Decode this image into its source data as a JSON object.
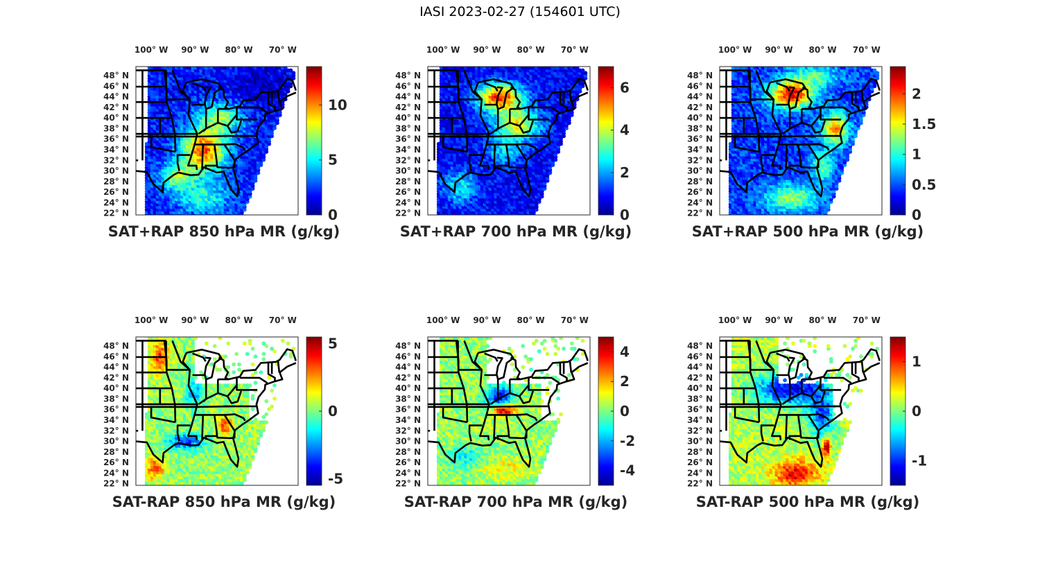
{
  "figure": {
    "title": "IASI 2023-02-27 (154601 UTC)"
  },
  "colors": {
    "jet": [
      "#00008f",
      "#0000ff",
      "#0080ff",
      "#00ffff",
      "#80ff80",
      "#ffff00",
      "#ff8000",
      "#ff0000",
      "#800000"
    ],
    "border": "#000000",
    "text": "#262626"
  },
  "chart_data": [
    {
      "type": "heatmap",
      "title": "SAT+RAP 850 hPa MR (g/kg)",
      "xlabel": "",
      "ylabel": "",
      "x_ticks": [
        "100° W",
        "90° W",
        "80° W",
        "70° W"
      ],
      "y_ticks": [
        "48° N",
        "46° N",
        "44° N",
        "42° N",
        "40° N",
        "38° N",
        "36° N",
        "34° N",
        "32° N",
        "30° N",
        "28° N",
        "26° N",
        "24° N",
        "22° N"
      ],
      "colorbar": {
        "range": [
          0,
          13.5
        ],
        "ticks": [
          0,
          5,
          10
        ],
        "tick_labels": [
          "0",
          "5",
          "10"
        ]
      },
      "pattern": "moisture-high-southeast",
      "description": "Mostly low values (~1-3) across north and west; moist tongue 8-12 g/kg over lower Mississippi valley, Tennessee, Alabama; moderate 5-7 over Gulf"
    },
    {
      "type": "heatmap",
      "title": "SAT+RAP 700 hPa MR (g/kg)",
      "xlabel": "",
      "ylabel": "",
      "x_ticks": [
        "100° W",
        "90° W",
        "80° W",
        "70° W"
      ],
      "y_ticks": [
        "48° N",
        "46° N",
        "44° N",
        "42° N",
        "40° N",
        "38° N",
        "36° N",
        "34° N",
        "32° N",
        "30° N",
        "28° N",
        "26° N",
        "24° N",
        "22° N"
      ],
      "colorbar": {
        "range": [
          0,
          7
        ],
        "ticks": [
          0,
          2,
          4,
          6
        ],
        "tick_labels": [
          "0",
          "2",
          "4",
          "6"
        ]
      },
      "pattern": "moisture-high-great-lakes",
      "description": "Max 5-6.5 g/kg over Wisconsin/Michigan/Ohio valley; low values 0-2 in west and over ocean"
    },
    {
      "type": "heatmap",
      "title": "SAT+RAP 500 hPa MR (g/kg)",
      "xlabel": "",
      "ylabel": "",
      "x_ticks": [
        "100° W",
        "90° W",
        "80° W",
        "70° W"
      ],
      "y_ticks": [
        "48° N",
        "46° N",
        "44° N",
        "42° N",
        "40° N",
        "38° N",
        "36° N",
        "34° N",
        "32° N",
        "30° N",
        "28° N",
        "26° N",
        "24° N",
        "22° N"
      ],
      "colorbar": {
        "range": [
          0,
          2.45
        ],
        "ticks": [
          0,
          0.5,
          1,
          1.5,
          2
        ],
        "tick_labels": [
          "0",
          "0.5",
          "1",
          "1.5",
          "2"
        ]
      },
      "pattern": "moisture-high-michigan",
      "description": "Max ~2 g/kg over Michigan and Mid-Atlantic coast; low values in central plains"
    },
    {
      "type": "heatmap",
      "title": "SAT-RAP 850 hPa MR (g/kg)",
      "xlabel": "",
      "ylabel": "",
      "x_ticks": [
        "100° W",
        "90° W",
        "80° W",
        "70° W"
      ],
      "y_ticks": [
        "48° N",
        "46° N",
        "44° N",
        "42° N",
        "40° N",
        "38° N",
        "36° N",
        "34° N",
        "32° N",
        "30° N",
        "28° N",
        "26° N",
        "24° N",
        "22° N"
      ],
      "colorbar": {
        "range": [
          -5.5,
          5.5
        ],
        "ticks": [
          -5,
          0,
          5
        ],
        "tick_labels": [
          "-5",
          "0",
          "5"
        ]
      },
      "pattern": "diff-850",
      "description": "Mostly near 0; positive 3-5 over Dakotas and South Texas coast; negative -3 to -5 along Gulf coast/Louisiana; sparse points in northeast"
    },
    {
      "type": "heatmap",
      "title": "SAT-RAP 700 hPa MR (g/kg)",
      "xlabel": "",
      "ylabel": "",
      "x_ticks": [
        "100° W",
        "90° W",
        "80° W",
        "70° W"
      ],
      "y_ticks": [
        "48° N",
        "46° N",
        "44° N",
        "42° N",
        "40° N",
        "38° N",
        "36° N",
        "34° N",
        "32° N",
        "30° N",
        "28° N",
        "26° N",
        "24° N",
        "22° N"
      ],
      "colorbar": {
        "range": [
          -5,
          5
        ],
        "ticks": [
          -4,
          -2,
          0,
          2,
          4
        ],
        "tick_labels": [
          "-4",
          "-2",
          "0",
          "2",
          "4"
        ]
      },
      "pattern": "diff-700",
      "description": "Mostly near 0; strong positive ~4 over Tennessee; negative -3 to -4 over Kentucky and western Gulf"
    },
    {
      "type": "heatmap",
      "title": "SAT-RAP 500 hPa MR (g/kg)",
      "xlabel": "",
      "ylabel": "",
      "x_ticks": [
        "100° W",
        "90° W",
        "80° W",
        "70° W"
      ],
      "y_ticks": [
        "48° N",
        "46° N",
        "44° N",
        "42° N",
        "40° N",
        "38° N",
        "36° N",
        "34° N",
        "32° N",
        "30° N",
        "28° N",
        "26° N",
        "24° N",
        "22° N"
      ],
      "colorbar": {
        "range": [
          -1.5,
          1.5
        ],
        "ticks": [
          -1,
          0,
          1
        ],
        "tick_labels": [
          "-1",
          "0",
          "1"
        ]
      },
      "pattern": "diff-500",
      "description": "Mostly near 0 in the west; negative ~-1.2 from Iowa to Virginia; positive ~1 over Gulf of Mexico and off Florida"
    }
  ]
}
